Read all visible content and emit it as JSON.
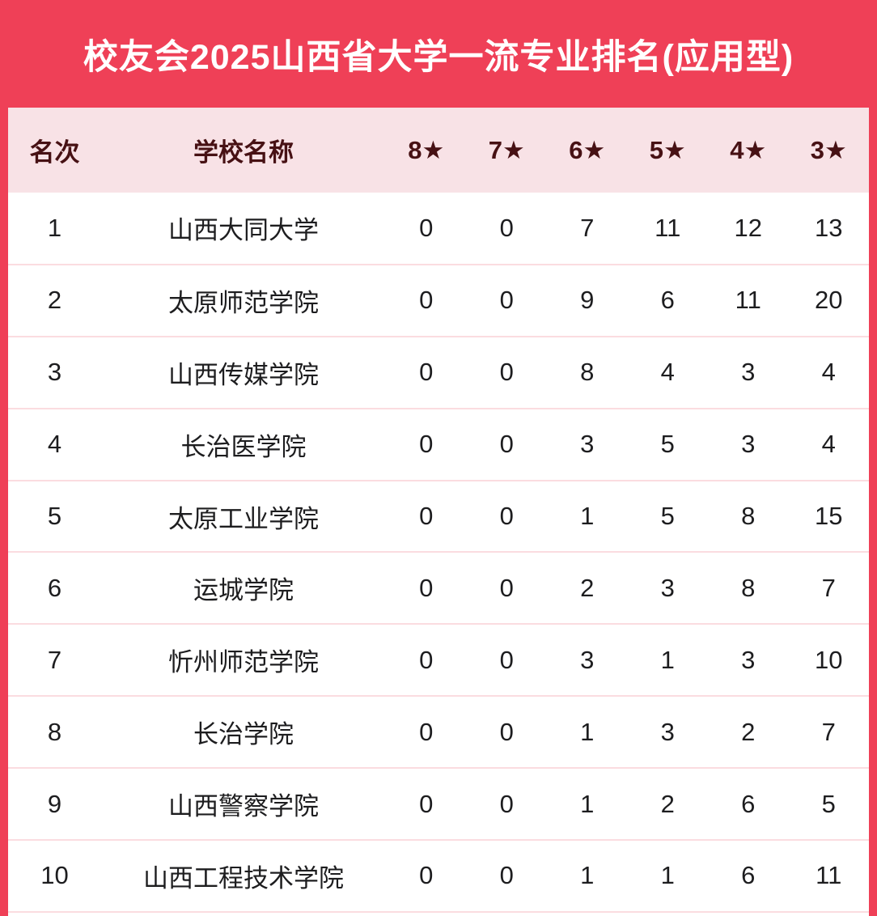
{
  "colors": {
    "brand_red": "#EF4057",
    "title_text": "#FFFFFF",
    "header_bg": "#F8E2E6",
    "header_text": "#471114",
    "row_divider": "#FBDCE0",
    "body_text": "#1D1D1F",
    "body_bg": "#FFFFFF"
  },
  "chart_data": {
    "type": "table",
    "title": "校友会2025山西省大学一流专业排名(应用型)",
    "columns": [
      "名次",
      "学校名称",
      "8★",
      "7★",
      "6★",
      "5★",
      "4★",
      "3★"
    ],
    "rows": [
      [
        "1",
        "山西大同大学",
        "0",
        "0",
        "7",
        "11",
        "12",
        "13"
      ],
      [
        "2",
        "太原师范学院",
        "0",
        "0",
        "9",
        "6",
        "11",
        "20"
      ],
      [
        "3",
        "山西传媒学院",
        "0",
        "0",
        "8",
        "4",
        "3",
        "4"
      ],
      [
        "4",
        "长治医学院",
        "0",
        "0",
        "3",
        "5",
        "3",
        "4"
      ],
      [
        "5",
        "太原工业学院",
        "0",
        "0",
        "1",
        "5",
        "8",
        "15"
      ],
      [
        "6",
        "运城学院",
        "0",
        "0",
        "2",
        "3",
        "8",
        "7"
      ],
      [
        "7",
        "忻州师范学院",
        "0",
        "0",
        "3",
        "1",
        "3",
        "10"
      ],
      [
        "8",
        "长治学院",
        "0",
        "0",
        "1",
        "3",
        "2",
        "7"
      ],
      [
        "9",
        "山西警察学院",
        "0",
        "0",
        "1",
        "2",
        "6",
        "5"
      ],
      [
        "10",
        "山西工程技术学院",
        "0",
        "0",
        "1",
        "1",
        "6",
        "11"
      ]
    ]
  }
}
